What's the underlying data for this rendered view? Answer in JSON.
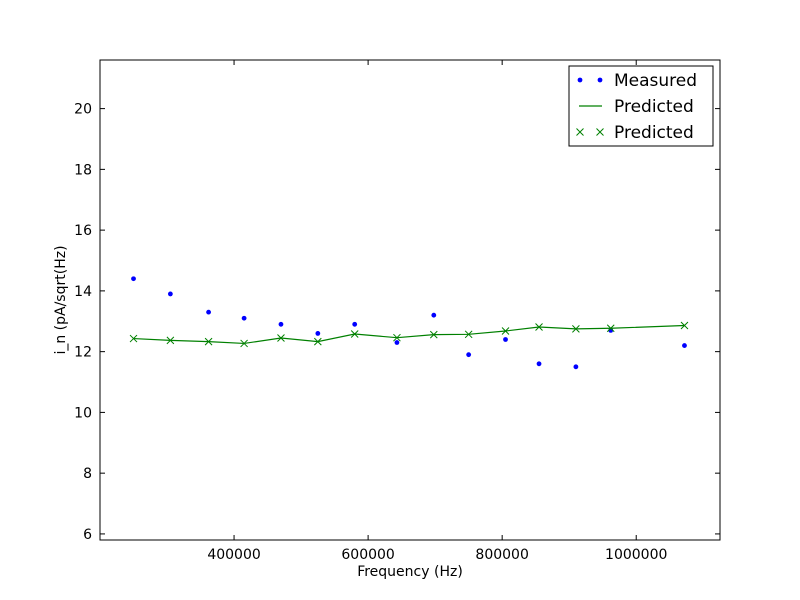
{
  "chart_data": {
    "type": "line",
    "xlabel": "Frequency (Hz)",
    "ylabel": "i_n (pA/sqrt(Hz)",
    "xlim": [
      200000,
      1125000
    ],
    "ylim": [
      5.8,
      21.6
    ],
    "x_ticks": [
      400000,
      600000,
      800000,
      1000000
    ],
    "y_ticks": [
      6,
      8,
      10,
      12,
      14,
      16,
      18,
      20
    ],
    "grid": false,
    "legend_position": "top-right",
    "series": [
      {
        "name": "Measured",
        "style": "dots",
        "color": "#0000ff",
        "x": [
          250000,
          305000,
          362000,
          415000,
          470000,
          525000,
          580000,
          643000,
          698000,
          750000,
          805000,
          855000,
          910000,
          962000,
          1072000
        ],
        "y": [
          14.4,
          13.9,
          13.3,
          13.1,
          12.9,
          12.6,
          12.9,
          12.3,
          13.2,
          11.9,
          12.4,
          11.6,
          11.5,
          12.7,
          12.2
        ]
      },
      {
        "name": "Predicted",
        "style": "line",
        "color": "#008000",
        "x": [
          250000,
          305000,
          362000,
          415000,
          470000,
          525000,
          580000,
          643000,
          698000,
          750000,
          805000,
          855000,
          910000,
          962000,
          1072000
        ],
        "y": [
          12.43,
          12.37,
          12.33,
          12.27,
          12.45,
          12.33,
          12.58,
          12.46,
          12.56,
          12.57,
          12.68,
          12.81,
          12.75,
          12.77,
          12.86
        ]
      },
      {
        "name": "Predicted",
        "style": "x-markers",
        "color": "#008000",
        "x": [
          250000,
          305000,
          362000,
          415000,
          470000,
          525000,
          580000,
          643000,
          698000,
          750000,
          805000,
          855000,
          910000,
          962000,
          1072000
        ],
        "y": [
          12.43,
          12.37,
          12.33,
          12.27,
          12.45,
          12.33,
          12.58,
          12.46,
          12.56,
          12.57,
          12.68,
          12.81,
          12.75,
          12.77,
          12.86
        ]
      }
    ]
  }
}
